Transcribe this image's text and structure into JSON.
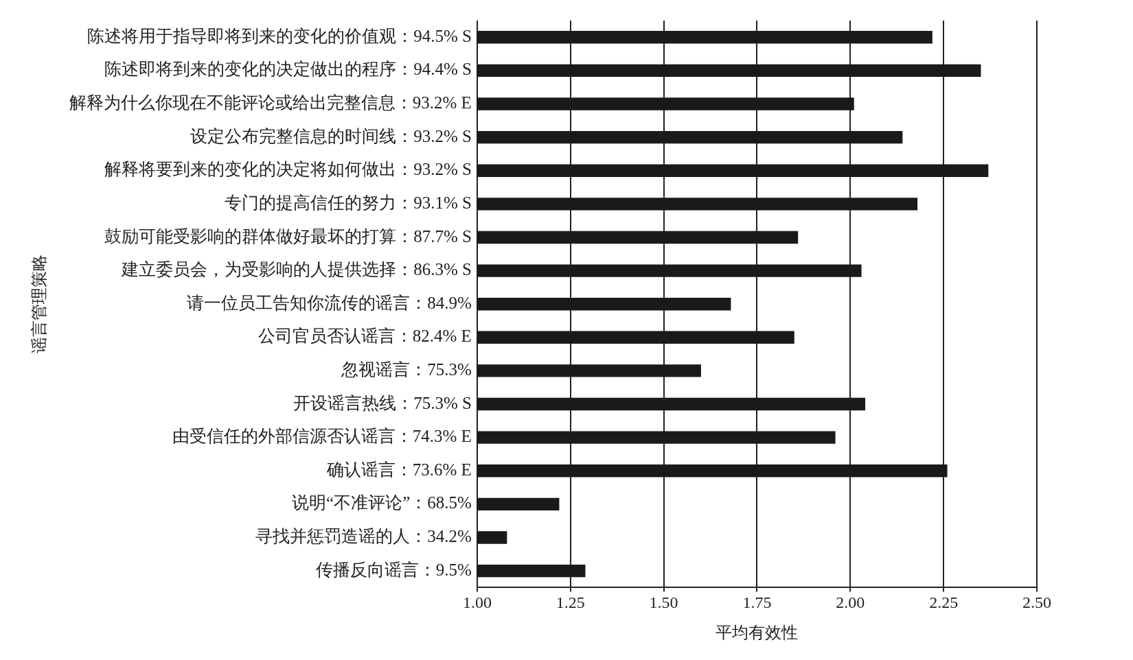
{
  "chart_data": {
    "type": "bar",
    "orientation": "horizontal",
    "xlabel": "平均有效性",
    "ylabel": "谣言管理策略",
    "categories": [
      "陈述将用于指导即将到来的变化的价值观：94.5% S",
      "陈述即将到来的变化的决定做出的程序：94.4% S",
      "解释为什么你现在不能评论或给出完整信息：93.2% E",
      "设定公布完整信息的时间线：93.2% S",
      "解释将要到来的变化的决定将如何做出：93.2% S",
      "专门的提高信任的努力：93.1% S",
      "鼓励可能受影响的群体做好最坏的打算：87.7% S",
      "建立委员会，为受影响的人提供选择：86.3% S",
      "请一位员工告知你流传的谣言：84.9%",
      "公司官员否认谣言：82.4% E",
      "忽视谣言：75.3%",
      "开设谣言热线：75.3% S",
      "由受信任的外部信源否认谣言：74.3% E",
      "确认谣言：73.6% E",
      "说明“不准评论”：68.5%",
      "寻找并惩罚造谣的人：34.2%",
      "传播反向谣言：9.5%"
    ],
    "values": [
      2.22,
      2.35,
      2.01,
      2.14,
      2.37,
      2.18,
      1.86,
      2.03,
      1.68,
      1.85,
      1.6,
      2.04,
      1.96,
      2.26,
      1.22,
      1.08,
      1.29
    ],
    "color": "#1a1a1a",
    "xlim": [
      1,
      2.5
    ],
    "xticks": [
      {
        "value": 1,
        "label": "1.00"
      },
      {
        "value": 1.25,
        "label": "1.25"
      },
      {
        "value": 1.5,
        "label": "1.50"
      },
      {
        "value": 1.75,
        "label": "1.75"
      },
      {
        "value": 2,
        "label": "2.00"
      },
      {
        "value": 2.25,
        "label": "2.25"
      },
      {
        "value": 2.5,
        "label": "2.50"
      }
    ],
    "grid": "x"
  }
}
